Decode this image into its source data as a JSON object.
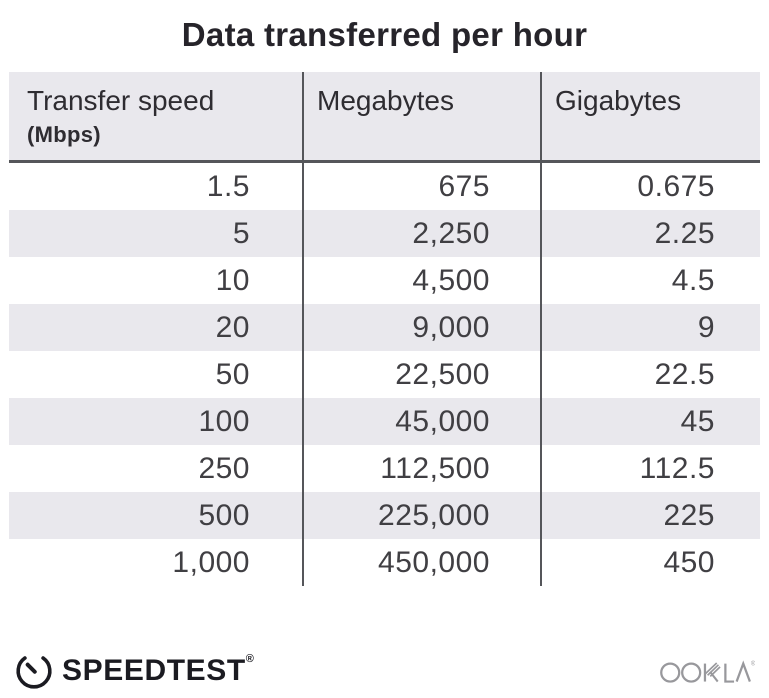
{
  "title": "Data transferred per hour",
  "table": {
    "columns": [
      {
        "label": "Transfer speed",
        "sublabel": "(Mbps)"
      },
      {
        "label": "Megabytes"
      },
      {
        "label": "Gigabytes"
      }
    ],
    "rows": [
      [
        "1.5",
        "675",
        "0.675"
      ],
      [
        "5",
        "2,250",
        "2.25"
      ],
      [
        "10",
        "4,500",
        "4.5"
      ],
      [
        "20",
        "9,000",
        "9"
      ],
      [
        "50",
        "22,500",
        "22.5"
      ],
      [
        "100",
        "45,000",
        "45"
      ],
      [
        "250",
        "112,500",
        "112.5"
      ],
      [
        "500",
        "225,000",
        "225"
      ],
      [
        "1,000",
        "450,000",
        "450"
      ]
    ]
  },
  "chart_data": {
    "type": "table",
    "title": "Data transferred per hour",
    "columns": [
      "Transfer speed (Mbps)",
      "Megabytes",
      "Gigabytes"
    ],
    "rows": [
      [
        1.5,
        675,
        0.675
      ],
      [
        5,
        2250,
        2.25
      ],
      [
        10,
        4500,
        4.5
      ],
      [
        20,
        9000,
        9
      ],
      [
        50,
        22500,
        22.5
      ],
      [
        100,
        45000,
        45
      ],
      [
        250,
        112500,
        112.5
      ],
      [
        500,
        225000,
        225
      ],
      [
        1000,
        450000,
        450
      ]
    ]
  },
  "footer": {
    "speedtest_label": "SPEEDTEST",
    "speedtest_trademark": "®",
    "ookla_label": "OOKLA",
    "ookla_trademark": "®"
  },
  "icons": {
    "speedtest": "gauge-icon",
    "ookla": "ookla-wordmark"
  },
  "colors": {
    "header_bg": "#e9e8ed",
    "row_alt_bg": "#e9e8ed",
    "divider": "#55565a",
    "title_text": "#26242a",
    "data_text": "#403f43",
    "logo_dark": "#1b1b21",
    "ookla_gray": "#98989c"
  }
}
